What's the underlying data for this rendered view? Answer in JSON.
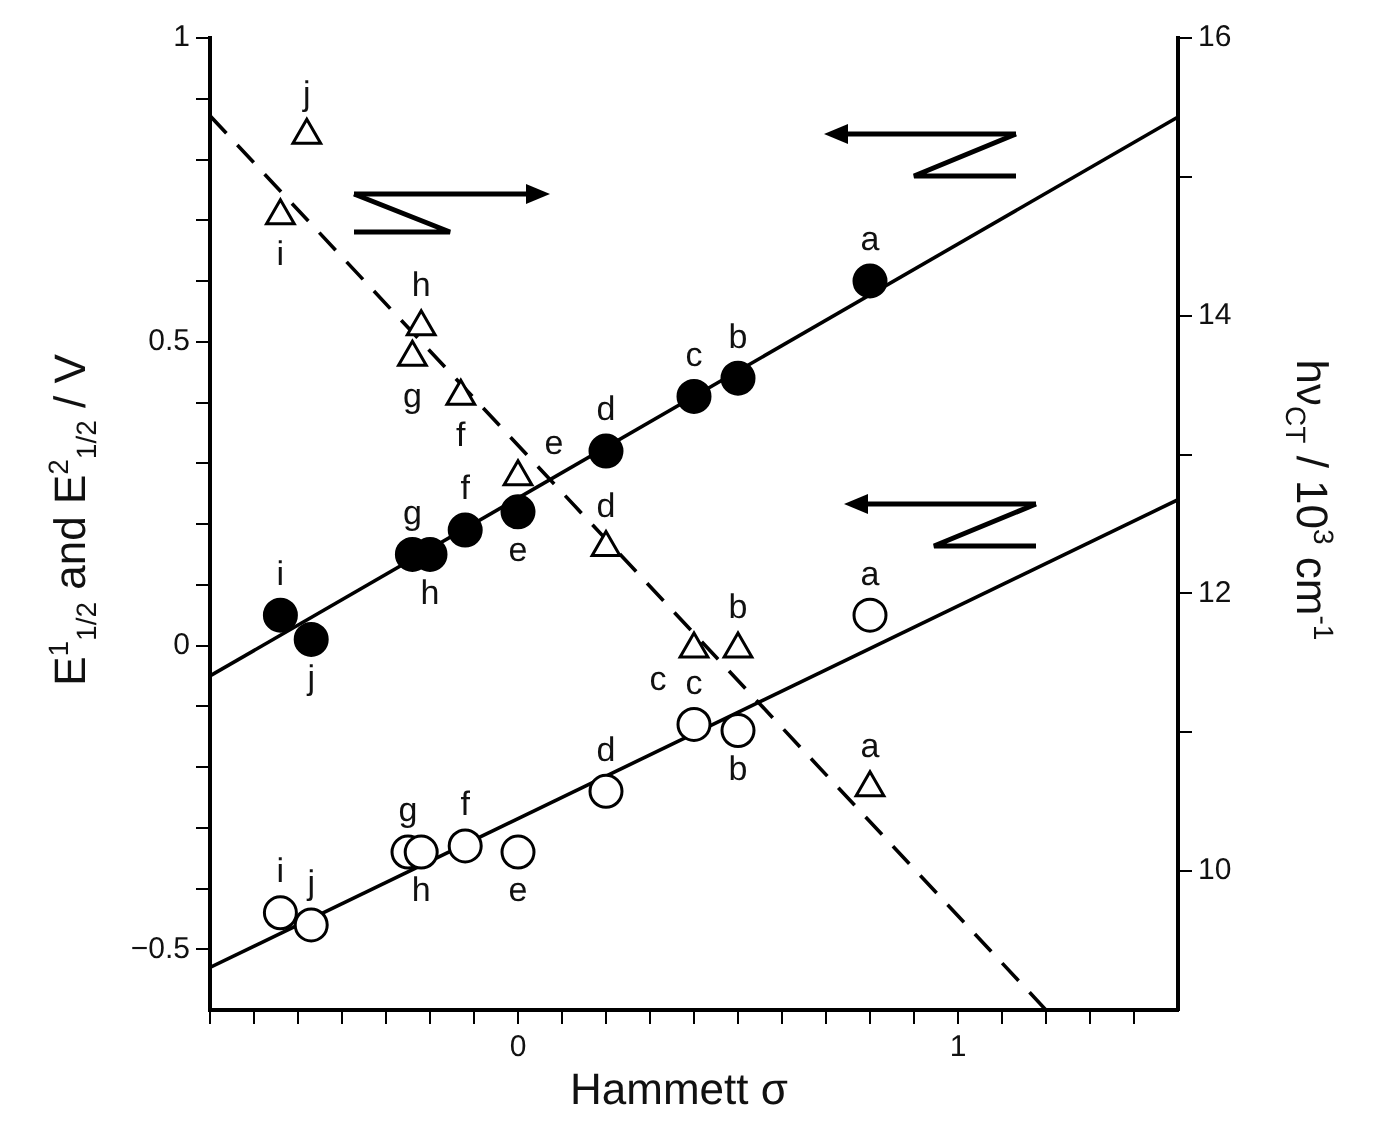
{
  "chart_data": {
    "type": "scatter",
    "xlabel": "Hammett σ",
    "ylabel": "E$^{1}$$_{1/2}$ and E$^{2}$$_{1/2}$ / V",
    "y2label": "hν$_{CT}$ / 10$^{3}$ cm$^{-1}$",
    "xlim": [
      -0.7,
      1.5
    ],
    "ylim": [
      -0.6,
      1
    ],
    "y2lim": [
      9,
      16
    ],
    "xticks": [
      {
        "value": -0.7,
        "label": null
      },
      {
        "value": -0.6,
        "label": null
      },
      {
        "value": -0.5,
        "label": null
      },
      {
        "value": -0.4,
        "label": null
      },
      {
        "value": -0.3,
        "label": null
      },
      {
        "value": -0.2,
        "label": null
      },
      {
        "value": -0.1,
        "label": null
      },
      0,
      {
        "value": 0.1,
        "label": null
      },
      {
        "value": 0.2,
        "label": null
      },
      {
        "value": 0.3,
        "label": null
      },
      {
        "value": 0.4,
        "label": null
      },
      {
        "value": 0.5,
        "label": null
      },
      {
        "value": 0.6,
        "label": null
      },
      {
        "value": 0.7,
        "label": null
      },
      {
        "value": 0.8,
        "label": null
      },
      {
        "value": 0.9,
        "label": null
      },
      1,
      {
        "value": 1.1,
        "label": null
      },
      {
        "value": 1.2,
        "label": null
      },
      {
        "value": 1.3,
        "label": null
      },
      {
        "value": 1.4,
        "label": null
      }
    ],
    "yticks": [
      {
        "value": -0.5,
        "label": "−0.5"
      },
      {
        "value": -0.4,
        "label": null
      },
      {
        "value": -0.3,
        "label": null
      },
      {
        "value": -0.2,
        "label": null
      },
      {
        "value": -0.1,
        "label": null
      },
      0,
      {
        "value": 0.1,
        "label": null
      },
      {
        "value": 0.2,
        "label": null
      },
      {
        "value": 0.3,
        "label": null
      },
      {
        "value": 0.4,
        "label": null
      },
      0.5,
      {
        "value": 0.6,
        "label": null
      },
      {
        "value": 0.7,
        "label": null
      },
      {
        "value": 0.8,
        "label": null
      },
      {
        "value": 0.9,
        "label": null
      },
      1
    ],
    "y2ticks": [
      10,
      {
        "value": 11,
        "label": null
      },
      12,
      {
        "value": 13,
        "label": null
      },
      14,
      {
        "value": 15,
        "label": null
      },
      16
    ],
    "marker": "circle",
    "grid": false,
    "legend": false,
    "series": [
      {
        "color": "#000000",
        "x": [
          0.8,
          0.5,
          0.4,
          0.2,
          0,
          -0.12,
          -0.24,
          -0.2,
          -0.54,
          -0.47
        ],
        "values": [
          0.6,
          0.44,
          0.41,
          0.32,
          0.22,
          0.19,
          0.15,
          0.15,
          0.05,
          0.01
        ],
        "value_labels": [
          "a",
          "b",
          "c",
          "d",
          "e",
          "f",
          "g",
          "h",
          "i",
          "j"
        ]
      },
      {
        "color": "#ffffff",
        "x": [
          0.8,
          0.5,
          0.4,
          0.2,
          0,
          -0.12,
          -0.25,
          -0.22,
          -0.54,
          -0.47
        ],
        "values": [
          0.05,
          -0.14,
          -0.13,
          -0.24,
          -0.34,
          -0.33,
          -0.34,
          -0.34,
          -0.44,
          -0.46
        ],
        "value_labels": [
          "a",
          "b",
          "c",
          "d",
          "e",
          "f",
          "g",
          "h",
          "i",
          "j"
        ]
      },
      {
        "marker": "triangle",
        "color": "#ffffff",
        "axis": "y2",
        "x": [
          0.8,
          0.5,
          0.4,
          0.2,
          0,
          -0.13,
          -0.24,
          -0.22,
          -0.54,
          -0.48
        ],
        "values": [
          10.6,
          11.6,
          11.6,
          12.33,
          12.84,
          13.42,
          13.7,
          13.92,
          14.72,
          15.3
        ],
        "value_labels": [
          "a",
          "b",
          "c",
          "d",
          "e",
          "f",
          "g",
          "h",
          "i",
          "j"
        ]
      },
      {
        "type": "line",
        "color": "#000000",
        "line_style": "solid",
        "marker": "none",
        "x": [
          -0.7,
          1.5
        ],
        "values": [
          -0.05,
          0.87
        ]
      },
      {
        "type": "line",
        "color": "#000000",
        "line_style": "solid",
        "marker": "none",
        "x": [
          -0.7,
          1.5
        ],
        "values": [
          -0.53,
          0.24
        ]
      },
      {
        "type": "line",
        "color": "#000000",
        "line_style": "dashed",
        "marker": "none",
        "axis": "y2",
        "x": [
          -0.7,
          1.2
        ],
        "values": [
          15.44,
          9
        ]
      }
    ]
  }
}
